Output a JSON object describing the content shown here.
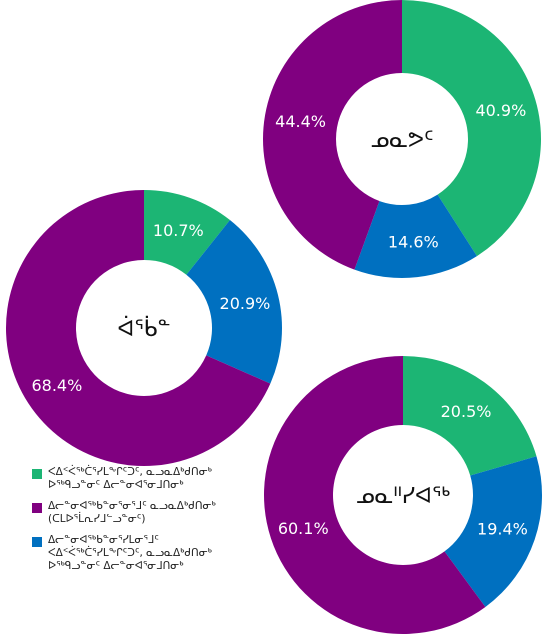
{
  "chart_data": [
    {
      "type": "pie",
      "variant": "donut",
      "center_label": "ᓄᓇᕗᑦ",
      "slices": [
        {
          "series": "green",
          "value": 40.9,
          "label": "40.9%"
        },
        {
          "series": "blue",
          "value": 14.6,
          "label": "14.6%"
        },
        {
          "series": "purple",
          "value": 44.4,
          "label": "44.4%"
        }
      ]
    },
    {
      "type": "pie",
      "variant": "donut",
      "center_label": "ᐋᖄᓐ",
      "slices": [
        {
          "series": "green",
          "value": 10.7,
          "label": "10.7%"
        },
        {
          "series": "blue",
          "value": 20.9,
          "label": "20.9%"
        },
        {
          "series": "purple",
          "value": 68.4,
          "label": "68.4%"
        }
      ]
    },
    {
      "type": "pie",
      "variant": "donut",
      "center_label": "ᓄᓇᐦᓯᐊᖅ",
      "slices": [
        {
          "series": "green",
          "value": 20.5,
          "label": "20.5%"
        },
        {
          "series": "blue",
          "value": 19.4,
          "label": "19.4%"
        },
        {
          "series": "purple",
          "value": 60.1,
          "label": "60.1%"
        }
      ]
    }
  ],
  "legend": [
    {
      "series": "green",
      "color": "#1cb574",
      "text": "ᐸᐃᑉᐹᖅᑖᕐᓯᒪᖕᒋᑦᑐᑦ, ᓇᓗᓇᐃᒃᑯᑎᓂᒃ\nᐅᖅᑫᓗᓐᓂᑦ ᐃᓕᓐᓂᐊᕐᓂᒧᑎᓂᒃ"
    },
    {
      "series": "purple",
      "color": "#800080",
      "text": "ᐃᓕᓐᓂᐊᖅᑲᓐᓂᕐᓂᕐᒧᑦ ᓇᓗᓇᐃᒃᑯᑎᓂᒃ\n(ᑕᒪᐅᕐᒫᕆᓯᒧᓪᓗᓐᓂᑦ)"
    },
    {
      "series": "blue",
      "color": "#0070c0",
      "text": "ᐃᓕᓐᓂᐊᖅᑲᓐᓂᕐᓯᒪᓂᕐᒧᑦ\nᐸᐃᑉᐹᖅᑖᕐᓯᒪᖕᒋᑦᑐᑦ, ᓇᓗᓇᐃᒃᑯᑎᓂᒃ\nᐅᖅᑫᓗᓐᓂᑦ ᐃᓕᓐᓂᐊᕐᓂᒧᑎᓂᒃ"
    }
  ],
  "colors": {
    "green": "#1cb574",
    "blue": "#0070c0",
    "purple": "#800080"
  }
}
